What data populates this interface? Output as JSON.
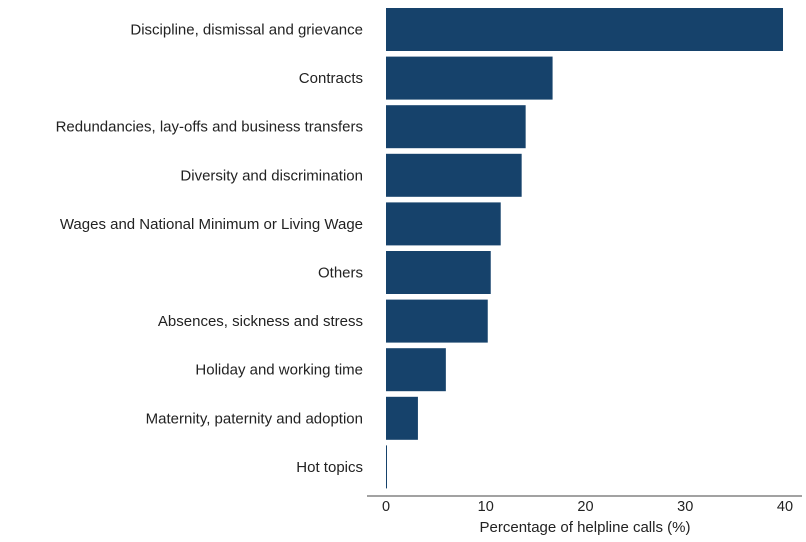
{
  "chart_data": {
    "type": "bar",
    "orientation": "horizontal",
    "categories": [
      "Discipline, dismissal and grievance",
      "Contracts",
      "Redundancies, lay-offs and business transfers",
      "Diversity and discrimination",
      "Wages and National Minimum or Living Wage",
      "Others",
      "Absences, sickness and stress",
      "Holiday and working time",
      "Maternity, paternity and adoption",
      "Hot topics"
    ],
    "values": [
      39.8,
      16.7,
      14.0,
      13.6,
      11.5,
      10.5,
      10.2,
      6.0,
      3.2,
      0.1
    ],
    "title": "",
    "xlabel": "Percentage of helpline calls (%)",
    "ylabel": "",
    "xlim": [
      0,
      40
    ],
    "xticks": [
      0,
      10,
      20,
      30,
      40
    ],
    "grid": false,
    "bar_color": "#16426b"
  }
}
